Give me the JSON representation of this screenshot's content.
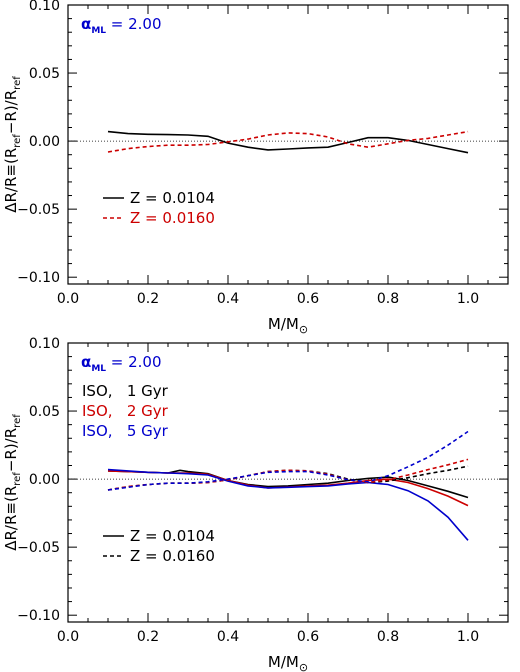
{
  "chart_data": [
    {
      "type": "line",
      "xlabel": "M/M",
      "xlabel_sub": "⊙",
      "ylabel_parts": [
        "ΔR/R≡(R",
        "ref",
        "−R)/R",
        "ref"
      ],
      "xlim": [
        0.0,
        1.1
      ],
      "ylim": [
        -0.105,
        0.1
      ],
      "x_ticks": [
        0.0,
        0.2,
        0.4,
        0.6,
        0.8,
        1.0
      ],
      "x_tick_labels": [
        "0.0",
        "0.2",
        "0.4",
        "0.6",
        "0.8",
        "1.0"
      ],
      "y_ticks": [
        -0.1,
        -0.05,
        0.0,
        0.05,
        0.1
      ],
      "y_tick_labels": [
        "−0.10",
        "−0.05",
        "0.00",
        "0.05",
        "0.10"
      ],
      "annotation": {
        "alpha_symbol": "α",
        "alpha_sub": "ML",
        "value": "= 2.00",
        "color": "#0000cc"
      },
      "legend_groups": [],
      "legend_styles": [
        {
          "label": "Z = 0.0104",
          "color": "#000000",
          "dash": "solid"
        },
        {
          "label": "Z = 0.0160",
          "color": "#cc0000",
          "dash": "dashed"
        }
      ],
      "series": [
        {
          "color": "#000000",
          "dash": "solid",
          "x": [
            0.1,
            0.15,
            0.2,
            0.25,
            0.3,
            0.35,
            0.4,
            0.45,
            0.5,
            0.55,
            0.6,
            0.65,
            0.7,
            0.75,
            0.8,
            0.85,
            0.9,
            0.95,
            1.0
          ],
          "y": [
            0.007,
            0.0055,
            0.005,
            0.0048,
            0.0045,
            0.0035,
            -0.0015,
            -0.0045,
            -0.0065,
            -0.0058,
            -0.005,
            -0.0045,
            -0.001,
            0.0025,
            0.0025,
            0.0005,
            -0.0025,
            -0.0055,
            -0.0085
          ]
        },
        {
          "color": "#cc0000",
          "dash": "dashed",
          "x": [
            0.1,
            0.15,
            0.2,
            0.25,
            0.3,
            0.35,
            0.4,
            0.45,
            0.5,
            0.55,
            0.6,
            0.65,
            0.7,
            0.75,
            0.8,
            0.85,
            0.9,
            0.95,
            1.0
          ],
          "y": [
            -0.008,
            -0.0055,
            -0.004,
            -0.003,
            -0.003,
            -0.0025,
            -0.0005,
            0.0015,
            0.0045,
            0.006,
            0.0055,
            0.003,
            -0.002,
            -0.0045,
            -0.002,
            0.0005,
            0.002,
            0.0045,
            0.007
          ]
        }
      ]
    },
    {
      "type": "line",
      "xlabel": "M/M",
      "xlabel_sub": "⊙",
      "ylabel_parts": [
        "ΔR/R≡(R",
        "ref",
        "−R)/R",
        "ref"
      ],
      "xlim": [
        0.0,
        1.1
      ],
      "ylim": [
        -0.105,
        0.1
      ],
      "x_ticks": [
        0.0,
        0.2,
        0.4,
        0.6,
        0.8,
        1.0
      ],
      "x_tick_labels": [
        "0.0",
        "0.2",
        "0.4",
        "0.6",
        "0.8",
        "1.0"
      ],
      "y_ticks": [
        -0.1,
        -0.05,
        0.0,
        0.05,
        0.1
      ],
      "y_tick_labels": [
        "−0.10",
        "−0.05",
        "0.00",
        "0.05",
        "0.10"
      ],
      "annotation": {
        "alpha_symbol": "α",
        "alpha_sub": "ML",
        "value": "= 2.00",
        "color": "#0000cc"
      },
      "legend_groups": [
        {
          "label": "ISO,   1 Gyr",
          "color": "#000000"
        },
        {
          "label": "ISO,   2 Gyr",
          "color": "#cc0000"
        },
        {
          "label": "ISO,   5 Gyr",
          "color": "#0000cc"
        }
      ],
      "legend_styles": [
        {
          "label": "Z = 0.0104",
          "color": "#000000",
          "dash": "solid"
        },
        {
          "label": "Z = 0.0160",
          "color": "#000000",
          "dash": "dashed"
        }
      ],
      "series": [
        {
          "color": "#000000",
          "dash": "solid",
          "x": [
            0.1,
            0.15,
            0.2,
            0.25,
            0.28,
            0.3,
            0.35,
            0.4,
            0.45,
            0.5,
            0.55,
            0.6,
            0.65,
            0.7,
            0.75,
            0.8,
            0.85,
            0.9,
            0.95,
            1.0
          ],
          "y": [
            0.006,
            0.0055,
            0.005,
            0.0045,
            0.0065,
            0.0055,
            0.004,
            -0.001,
            -0.004,
            -0.0055,
            -0.005,
            -0.004,
            -0.003,
            -0.001,
            0.0005,
            0.0015,
            -0.001,
            -0.005,
            -0.009,
            -0.0135
          ]
        },
        {
          "color": "#cc0000",
          "dash": "solid",
          "x": [
            0.1,
            0.15,
            0.2,
            0.25,
            0.3,
            0.35,
            0.4,
            0.45,
            0.5,
            0.55,
            0.6,
            0.65,
            0.7,
            0.75,
            0.8,
            0.85,
            0.9,
            0.95,
            1.0
          ],
          "y": [
            0.006,
            0.0055,
            0.005,
            0.0045,
            0.0045,
            0.0035,
            -0.001,
            -0.0045,
            -0.0065,
            -0.0058,
            -0.005,
            -0.0045,
            -0.003,
            -0.001,
            0.0,
            -0.0025,
            -0.007,
            -0.0125,
            -0.0195
          ]
        },
        {
          "color": "#0000cc",
          "dash": "solid",
          "x": [
            0.1,
            0.15,
            0.2,
            0.25,
            0.3,
            0.35,
            0.4,
            0.45,
            0.5,
            0.55,
            0.6,
            0.65,
            0.7,
            0.75,
            0.8,
            0.85,
            0.9,
            0.95,
            1.0
          ],
          "y": [
            0.007,
            0.006,
            0.005,
            0.0045,
            0.004,
            0.003,
            -0.0015,
            -0.005,
            -0.0065,
            -0.006,
            -0.0055,
            -0.005,
            -0.0035,
            -0.0025,
            -0.004,
            -0.0085,
            -0.016,
            -0.028,
            -0.045
          ]
        },
        {
          "color": "#000000",
          "dash": "dashed",
          "x": [
            0.1,
            0.15,
            0.2,
            0.25,
            0.3,
            0.35,
            0.4,
            0.45,
            0.5,
            0.55,
            0.6,
            0.65,
            0.7,
            0.75,
            0.8,
            0.85,
            0.9,
            0.95,
            1.0
          ],
          "y": [
            -0.008,
            -0.0055,
            -0.004,
            -0.003,
            -0.003,
            -0.0025,
            -0.0005,
            0.0025,
            0.0055,
            0.0065,
            0.006,
            0.004,
            0.0,
            -0.0025,
            -0.0015,
            0.001,
            0.004,
            0.0065,
            0.0095
          ]
        },
        {
          "color": "#cc0000",
          "dash": "dashed",
          "x": [
            0.1,
            0.15,
            0.2,
            0.25,
            0.3,
            0.35,
            0.4,
            0.45,
            0.5,
            0.55,
            0.6,
            0.65,
            0.7,
            0.75,
            0.8,
            0.85,
            0.9,
            0.95,
            1.0
          ],
          "y": [
            -0.008,
            -0.0055,
            -0.004,
            -0.003,
            -0.003,
            -0.0025,
            -0.0005,
            0.0025,
            0.0055,
            0.0065,
            0.006,
            0.0035,
            -0.0005,
            -0.0025,
            -0.0005,
            0.003,
            0.007,
            0.0105,
            0.0145
          ]
        },
        {
          "color": "#0000cc",
          "dash": "dashed",
          "x": [
            0.1,
            0.15,
            0.2,
            0.25,
            0.3,
            0.35,
            0.4,
            0.45,
            0.5,
            0.55,
            0.6,
            0.65,
            0.7,
            0.75,
            0.8,
            0.85,
            0.9,
            0.95,
            1.0
          ],
          "y": [
            -0.008,
            -0.006,
            -0.004,
            -0.003,
            -0.003,
            -0.002,
            0.0,
            0.0025,
            0.005,
            0.0055,
            0.0055,
            0.003,
            -0.0005,
            -0.002,
            0.0025,
            0.009,
            0.016,
            0.025,
            0.035
          ]
        }
      ]
    }
  ]
}
